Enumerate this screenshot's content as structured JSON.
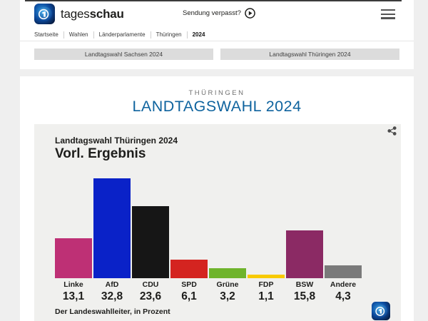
{
  "header": {
    "brand_light": "tages",
    "brand_bold": "schau",
    "sendung_link": "Sendung verpasst?"
  },
  "breadcrumb": {
    "items": [
      "Startseite",
      "Wahlen",
      "Länderparlamente",
      "Thüringen",
      "2024"
    ]
  },
  "nav_buttons": {
    "left": "Landtagswahl Sachsen 2024",
    "right": "Landtagswahl Thüringen 2024"
  },
  "page": {
    "kicker": "THÜRINGEN",
    "title": "LANDTAGSWAHL 2024"
  },
  "chart_data": {
    "type": "bar",
    "title": "Landtagswahl Thüringen 2024",
    "subtitle": "Vorl. Ergebnis",
    "categories": [
      "Linke",
      "AfD",
      "CDU",
      "SPD",
      "Grüne",
      "FDP",
      "BSW",
      "Andere"
    ],
    "values": [
      13.1,
      32.8,
      23.6,
      6.1,
      3.2,
      1.1,
      15.8,
      4.3
    ],
    "value_labels": [
      "13,1",
      "32,8",
      "23,6",
      "6,1",
      "3,2",
      "1,1",
      "15,8",
      "4,3"
    ],
    "bar_colors": [
      "#be3075",
      "#0a22c8",
      "#161616",
      "#d42420",
      "#6fb42c",
      "#f8ca00",
      "#8b2a64",
      "#7a7a7a"
    ],
    "unit": "Prozent",
    "ylim": [
      0,
      33
    ],
    "grid": false,
    "legend": "none",
    "source": "Der Landeswahlleiter, in Prozent"
  },
  "colors": {
    "page_bg": "#efefef",
    "content_bg": "#ffffff",
    "card_bg": "#f0f0ee",
    "accent_blue": "#0e639e",
    "button_bg": "#dcdcdc",
    "text_dark": "#1d1d1b",
    "top_line": "#3c3c3c"
  }
}
